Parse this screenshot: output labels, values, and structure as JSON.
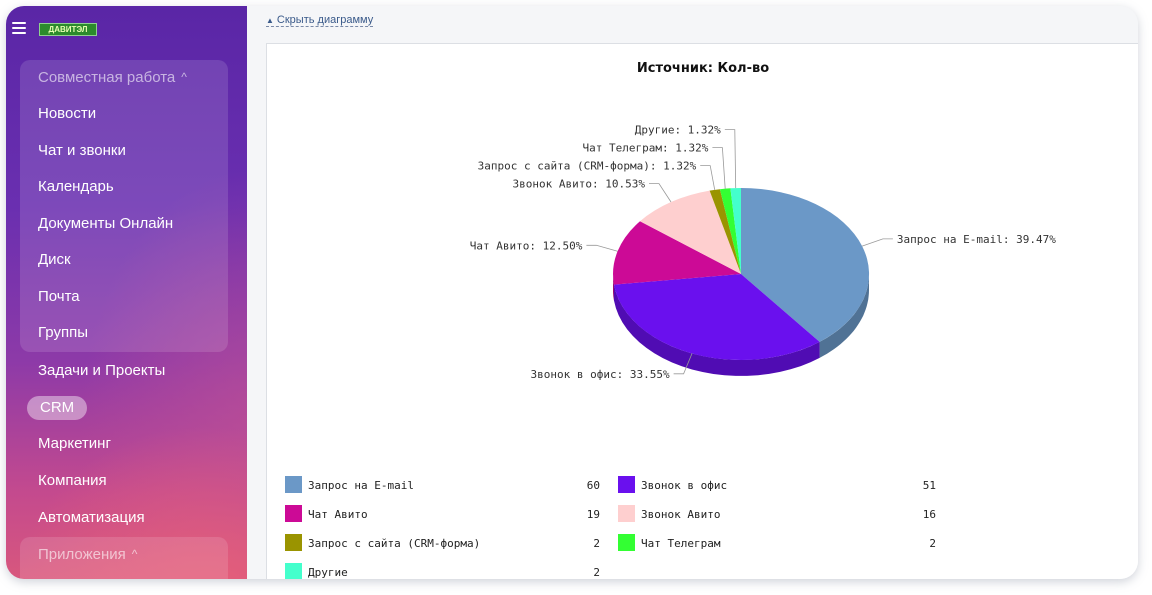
{
  "sidebar": {
    "logo_text": "ДАВИТЭЛ",
    "group_collab": "Совместная работа",
    "items": [
      "Новости",
      "Чат и звонки",
      "Календарь",
      "Документы Онлайн",
      "Диск",
      "Почта",
      "Группы",
      "Задачи и Проекты"
    ],
    "crm": "CRM",
    "items2": [
      "Маркетинг",
      "Компания",
      "Автоматизация"
    ],
    "group_apps": "Приложения"
  },
  "main": {
    "hide_chart_link": "Скрыть диаграмму"
  },
  "chart_data": {
    "type": "pie",
    "title": "Источник: Кол-во",
    "slices": [
      {
        "name": "Запрос на E-mail",
        "value": 60,
        "percent": "39.47%",
        "color": "#6b98c7"
      },
      {
        "name": "Звонок в офис",
        "value": 51,
        "percent": "33.55%",
        "color": "#6a10ee"
      },
      {
        "name": "Чат Авито",
        "value": 19,
        "percent": "12.50%",
        "color": "#cc0a96"
      },
      {
        "name": "Звонок Авито",
        "value": 16,
        "percent": "10.53%",
        "color": "#fecfcf"
      },
      {
        "name": "Запрос с сайта (CRM-форма)",
        "value": 2,
        "percent": "1.32%",
        "color": "#9a9400"
      },
      {
        "name": "Чат Телеграм",
        "value": 2,
        "percent": "1.32%",
        "color": "#33ff33"
      },
      {
        "name": "Другие",
        "value": 2,
        "percent": "1.32%",
        "color": "#44ffcc"
      }
    ]
  }
}
